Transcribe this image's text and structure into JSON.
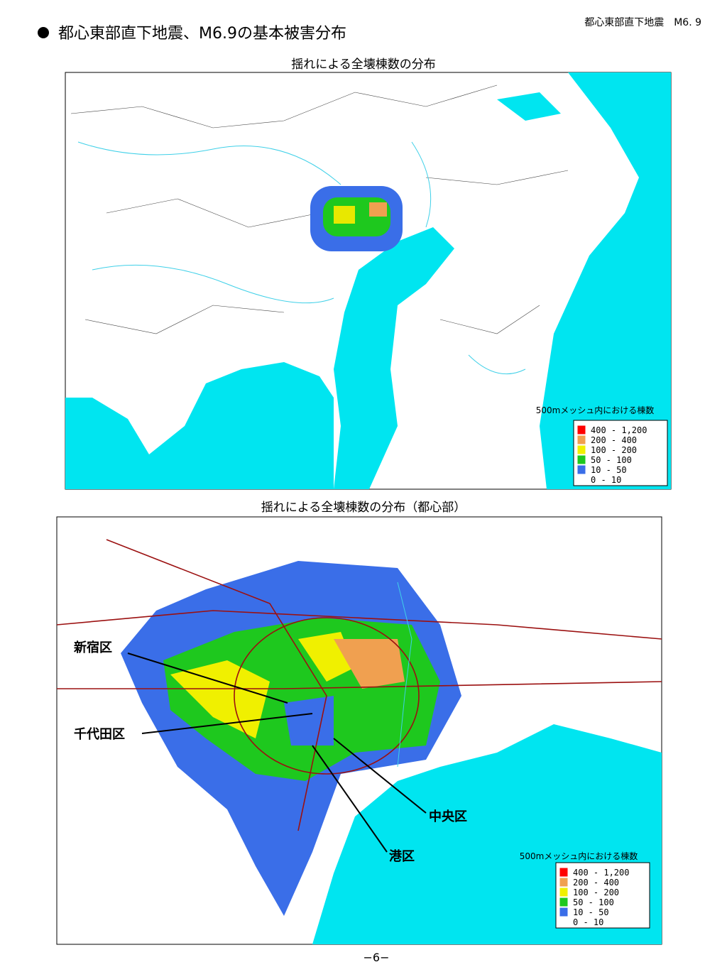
{
  "header": {
    "note": "都心東部直下地震　M6. 9",
    "title": "都心東部直下地震、M6.9の基本被害分布"
  },
  "legend": {
    "title": "500mメッシュ内における棟数",
    "items": [
      {
        "range": "400 - 1,200",
        "color": "#ff0000"
      },
      {
        "range": "200 - 400",
        "color": "#f0a050"
      },
      {
        "range": "100 - 200",
        "color": "#f0f000"
      },
      {
        "range": "50 - 100",
        "color": "#1ec81e"
      },
      {
        "range": "10 - 50",
        "color": "#3a6ee8"
      },
      {
        "range": "0 - 10",
        "color": "#ffffff"
      }
    ]
  },
  "maps": [
    {
      "title": "揺れによる全壊棟数の分布"
    },
    {
      "title": "揺れによる全壊棟数の分布（都心部）",
      "labels": [
        "新宿区",
        "千代田区",
        "中央区",
        "港区"
      ]
    }
  ],
  "footer": {
    "page": "−6−"
  }
}
